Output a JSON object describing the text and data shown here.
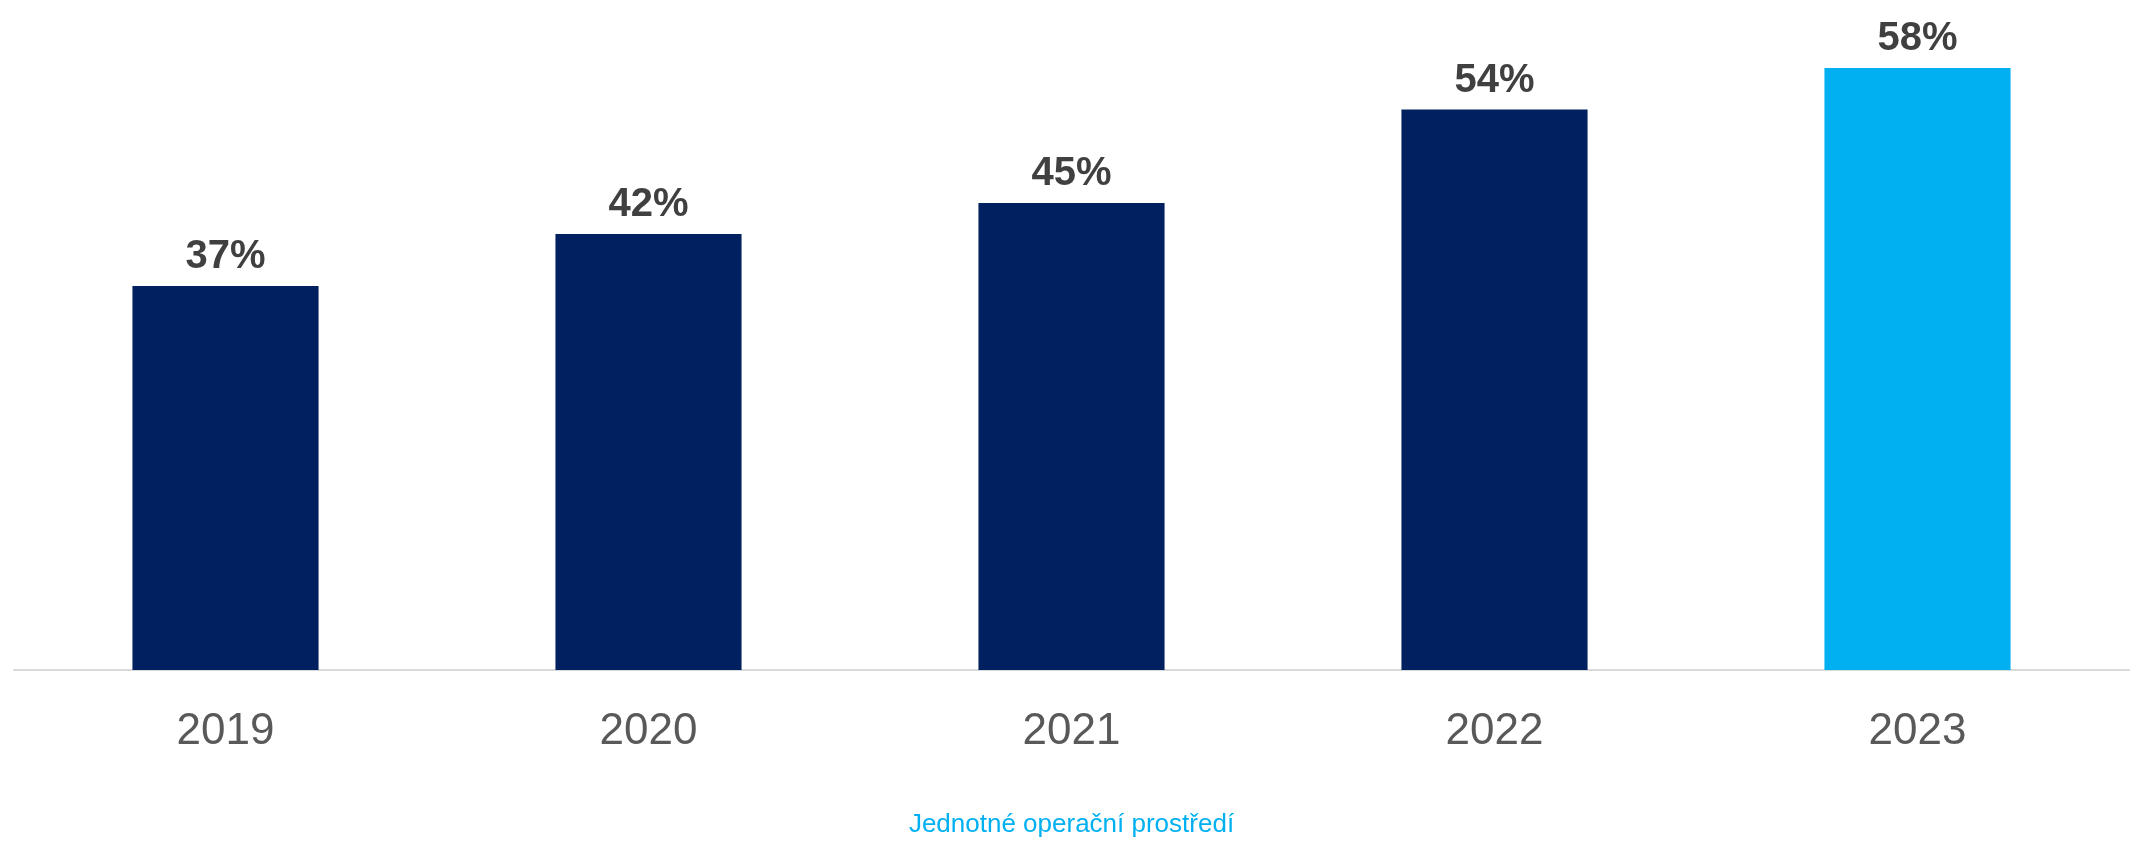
{
  "chart_data": {
    "type": "bar",
    "xlabel": "Jednotné operační prostředí",
    "categories": [
      "2019",
      "2020",
      "2021",
      "2022",
      "2023"
    ],
    "values": [
      37,
      42,
      45,
      54,
      58
    ],
    "colors": [
      "#002060",
      "#002060",
      "#002060",
      "#002060",
      "#00b0f0"
    ],
    "value_labels": [
      "37%",
      "42%",
      "45%",
      "54%",
      "58%"
    ]
  }
}
